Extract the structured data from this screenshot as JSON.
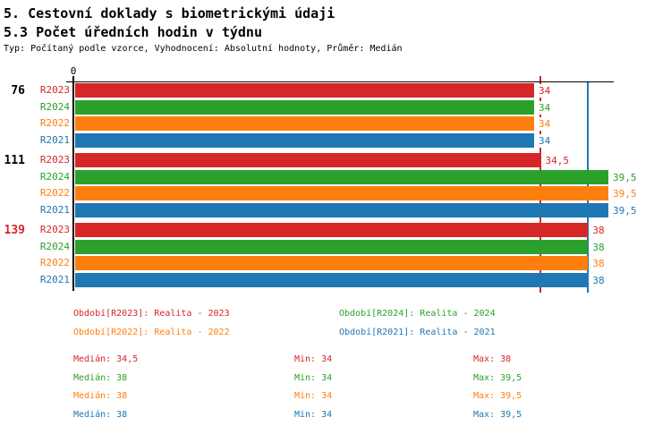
{
  "title": "5. Cestovní doklady s biometrickými údaji",
  "subtitle": "5.3 Počet úředních hodin v týdnu",
  "meta": "Typ: Počítaný podle vzorce, Vyhodnocení: Absolutní hodnoty, Průměr: Medián",
  "colors": {
    "R2023": "#d62728",
    "R2024": "#2ca02c",
    "R2022": "#ff7f0e",
    "R2021": "#1f77b4",
    "axis": "#000000",
    "group_label_default": "#000000",
    "group_label_highlight": "#d62728"
  },
  "chart_data": {
    "type": "bar",
    "orientation": "horizontal",
    "axis_origin_label": "0",
    "xlim": [
      0,
      39.9
    ],
    "grid": false,
    "series_order": [
      "R2023",
      "R2024",
      "R2022",
      "R2021"
    ],
    "groups": [
      {
        "label": "76",
        "label_color": "#000000",
        "values": {
          "R2023": 34,
          "R2024": 34,
          "R2022": 34,
          "R2021": 34
        }
      },
      {
        "label": "111",
        "label_color": "#000000",
        "values": {
          "R2023": 34.5,
          "R2024": 39.5,
          "R2022": 39.5,
          "R2021": 39.5
        }
      },
      {
        "label": "139",
        "label_color": "#d62728",
        "values": {
          "R2023": 38,
          "R2024": 38,
          "R2022": 38,
          "R2021": 38
        }
      }
    ],
    "reference_lines": [
      {
        "value": 34.5,
        "color": "#d62728",
        "tick_above_axis": true
      },
      {
        "value": 38,
        "color": "#1f77b4",
        "tick_above_axis": false
      }
    ],
    "value_display": {
      "decimal_separator": ","
    }
  },
  "legend": {
    "items": [
      {
        "label": "Období[R2023]: Realita - 2023",
        "color": "#d62728"
      },
      {
        "label": "Období[R2024]: Realita - 2024",
        "color": "#2ca02c"
      },
      {
        "label": "Období[R2022]: Realita - 2022",
        "color": "#ff7f0e"
      },
      {
        "label": "Období[R2021]: Realita - 2021",
        "color": "#1f77b4"
      }
    ]
  },
  "stats": {
    "rows": [
      {
        "color": "#d62728",
        "cells": [
          "Medián: 34,5",
          "Min: 34",
          "Max: 38"
        ]
      },
      {
        "color": "#2ca02c",
        "cells": [
          "Medián: 38",
          "Min: 34",
          "Max: 39,5"
        ]
      },
      {
        "color": "#ff7f0e",
        "cells": [
          "Medián: 38",
          "Min: 34",
          "Max: 39,5"
        ]
      },
      {
        "color": "#1f77b4",
        "cells": [
          "Medián: 38",
          "Min: 34",
          "Max: 39,5"
        ]
      }
    ]
  }
}
